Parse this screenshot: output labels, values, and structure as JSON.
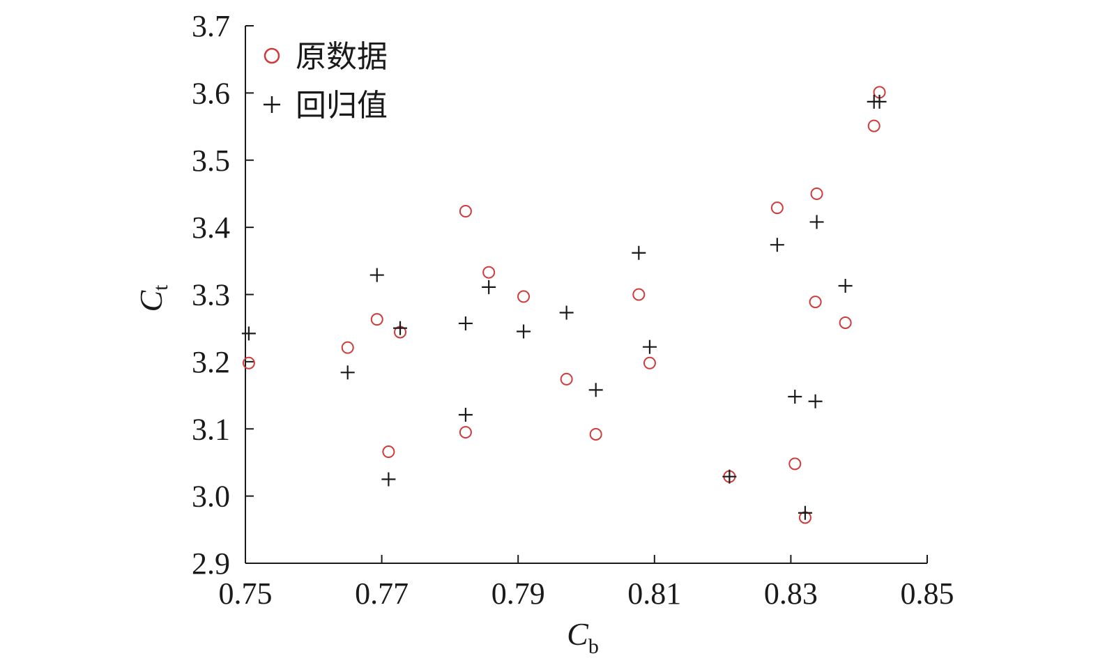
{
  "chart_data": {
    "type": "scatter",
    "xlabel": {
      "main": "C",
      "sub": "b"
    },
    "ylabel": {
      "main": "C",
      "sub": "t"
    },
    "xlim": [
      0.75,
      0.85
    ],
    "ylim": [
      2.9,
      3.7
    ],
    "xticks": [
      "0.75",
      "0.77",
      "0.79",
      "0.81",
      "0.83",
      "0.85"
    ],
    "yticks": [
      "2.9",
      "3.0",
      "3.1",
      "3.2",
      "3.3",
      "3.4",
      "3.5",
      "3.6",
      "3.7"
    ],
    "grid": false,
    "legend_position": "top-left",
    "series": [
      {
        "name": "原数据",
        "marker": "circle",
        "color": "#d03a3a",
        "x": [
          0.7505,
          0.765,
          0.7693,
          0.771,
          0.7727,
          0.7823,
          0.7823,
          0.7857,
          0.7908,
          0.7971,
          0.8014,
          0.8077,
          0.8093,
          0.821,
          0.828,
          0.8306,
          0.8321,
          0.8336,
          0.8338,
          0.838,
          0.8422,
          0.843
        ],
        "y": [
          3.198,
          3.221,
          3.263,
          3.066,
          3.244,
          3.424,
          3.095,
          3.333,
          3.297,
          3.174,
          3.092,
          3.3,
          3.198,
          3.029,
          3.429,
          3.048,
          2.968,
          3.289,
          3.45,
          3.258,
          3.551,
          3.601
        ]
      },
      {
        "name": "回归值",
        "marker": "plus",
        "color": "#1a1a1a",
        "x": [
          0.7505,
          0.765,
          0.7693,
          0.771,
          0.7727,
          0.7823,
          0.7823,
          0.7857,
          0.7908,
          0.7971,
          0.8014,
          0.8077,
          0.8093,
          0.821,
          0.828,
          0.8306,
          0.8321,
          0.8336,
          0.8338,
          0.838,
          0.8422,
          0.843
        ],
        "y": [
          3.242,
          3.184,
          3.329,
          3.025,
          3.25,
          3.257,
          3.121,
          3.311,
          3.245,
          3.273,
          3.158,
          3.362,
          3.222,
          3.029,
          3.374,
          3.148,
          2.975,
          3.141,
          3.408,
          3.313,
          3.587,
          3.587
        ]
      }
    ]
  }
}
